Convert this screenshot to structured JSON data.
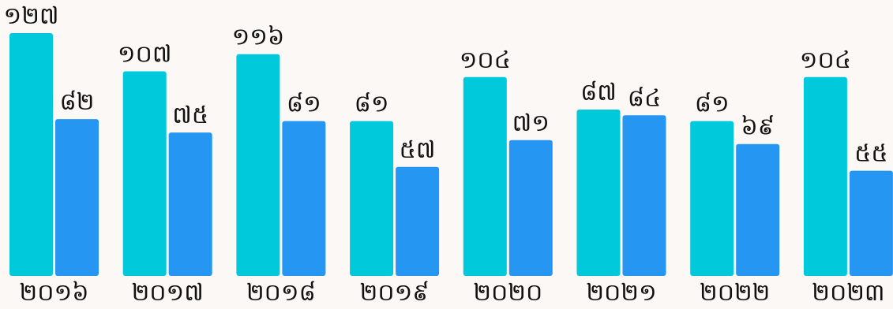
{
  "chart_data": {
    "type": "bar",
    "title": "",
    "xlabel": "",
    "ylabel": "",
    "ylim": [
      0,
      127
    ],
    "grid": false,
    "legend": "none",
    "categories": [
      "២០១៦",
      "២០១៧",
      "២០១៨",
      "២០១៩",
      "២០២០",
      "២០២១",
      "២០២២",
      "២០២៣"
    ],
    "series": [
      {
        "color": "#00c9dc",
        "values": [
          127,
          107,
          116,
          81,
          104,
          87,
          81,
          104
        ],
        "labels": [
          "១២៧",
          "១០៧",
          "១១៦",
          "៨១",
          "១០៤",
          "៨៧",
          "៨១",
          "១០៤"
        ]
      },
      {
        "color": "#2596f2",
        "values": [
          82,
          75,
          81,
          57,
          71,
          84,
          69,
          55
        ],
        "labels": [
          "៨២",
          "៧៥",
          "៨១",
          "៥៧",
          "៧១",
          "៨៤",
          "៦៩",
          "៥៥"
        ]
      }
    ]
  }
}
